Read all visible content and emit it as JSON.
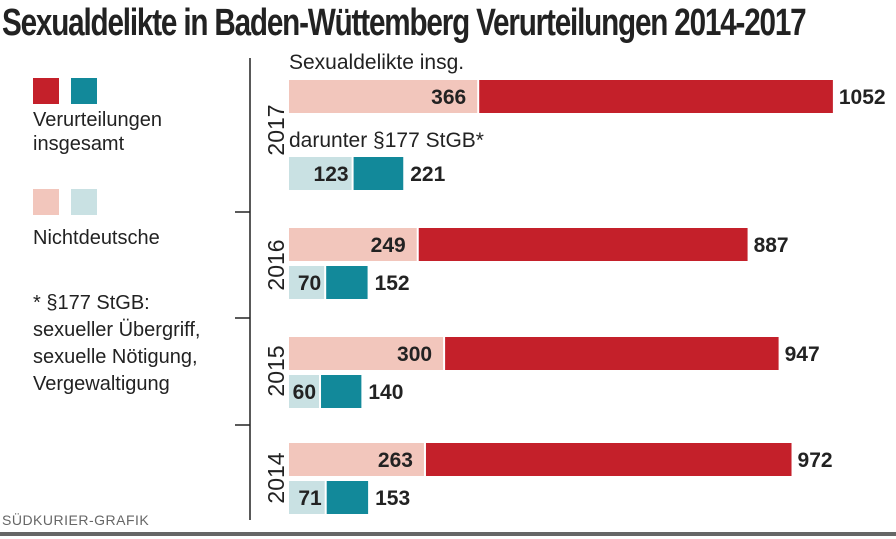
{
  "title": "Sexualdelikte in Baden-Wüttemberg Verurteilungen 2014-2017",
  "legend": {
    "total_label_line1": "Verurteilungen",
    "total_label_line2": "insgesamt",
    "foreign_label": "Nichtdeutsche"
  },
  "footnote": {
    "line1": "* §177 StGB:",
    "line2": "sexueller Übergriff,",
    "line3": "sexuelle Nötigung,",
    "line4": "Vergewaltigung"
  },
  "source": "SÜDKURIER-GRAFIK",
  "colors": {
    "red_dark": "#c4202a",
    "red_light": "#f2c6bc",
    "teal_dark": "#12899a",
    "teal_light": "#c9e1e3"
  },
  "chart_data": {
    "type": "bar",
    "orientation": "horizontal",
    "categories": [
      "2017",
      "2016",
      "2015",
      "2014"
    ],
    "section_labels": [
      "Sexualdelikte insg.",
      "darunter §177 StGB*"
    ],
    "series": [
      {
        "name": "Sexualdelikte insg. – Verurteilungen insgesamt",
        "values": [
          1052,
          887,
          947,
          972
        ]
      },
      {
        "name": "Sexualdelikte insg. – Nichtdeutsche",
        "values": [
          366,
          249,
          300,
          263
        ]
      },
      {
        "name": "§177 StGB – Verurteilungen insgesamt",
        "values": [
          221,
          152,
          140,
          153
        ]
      },
      {
        "name": "§177 StGB – Nichtdeutsche",
        "values": [
          123,
          70,
          60,
          71
        ]
      }
    ]
  }
}
